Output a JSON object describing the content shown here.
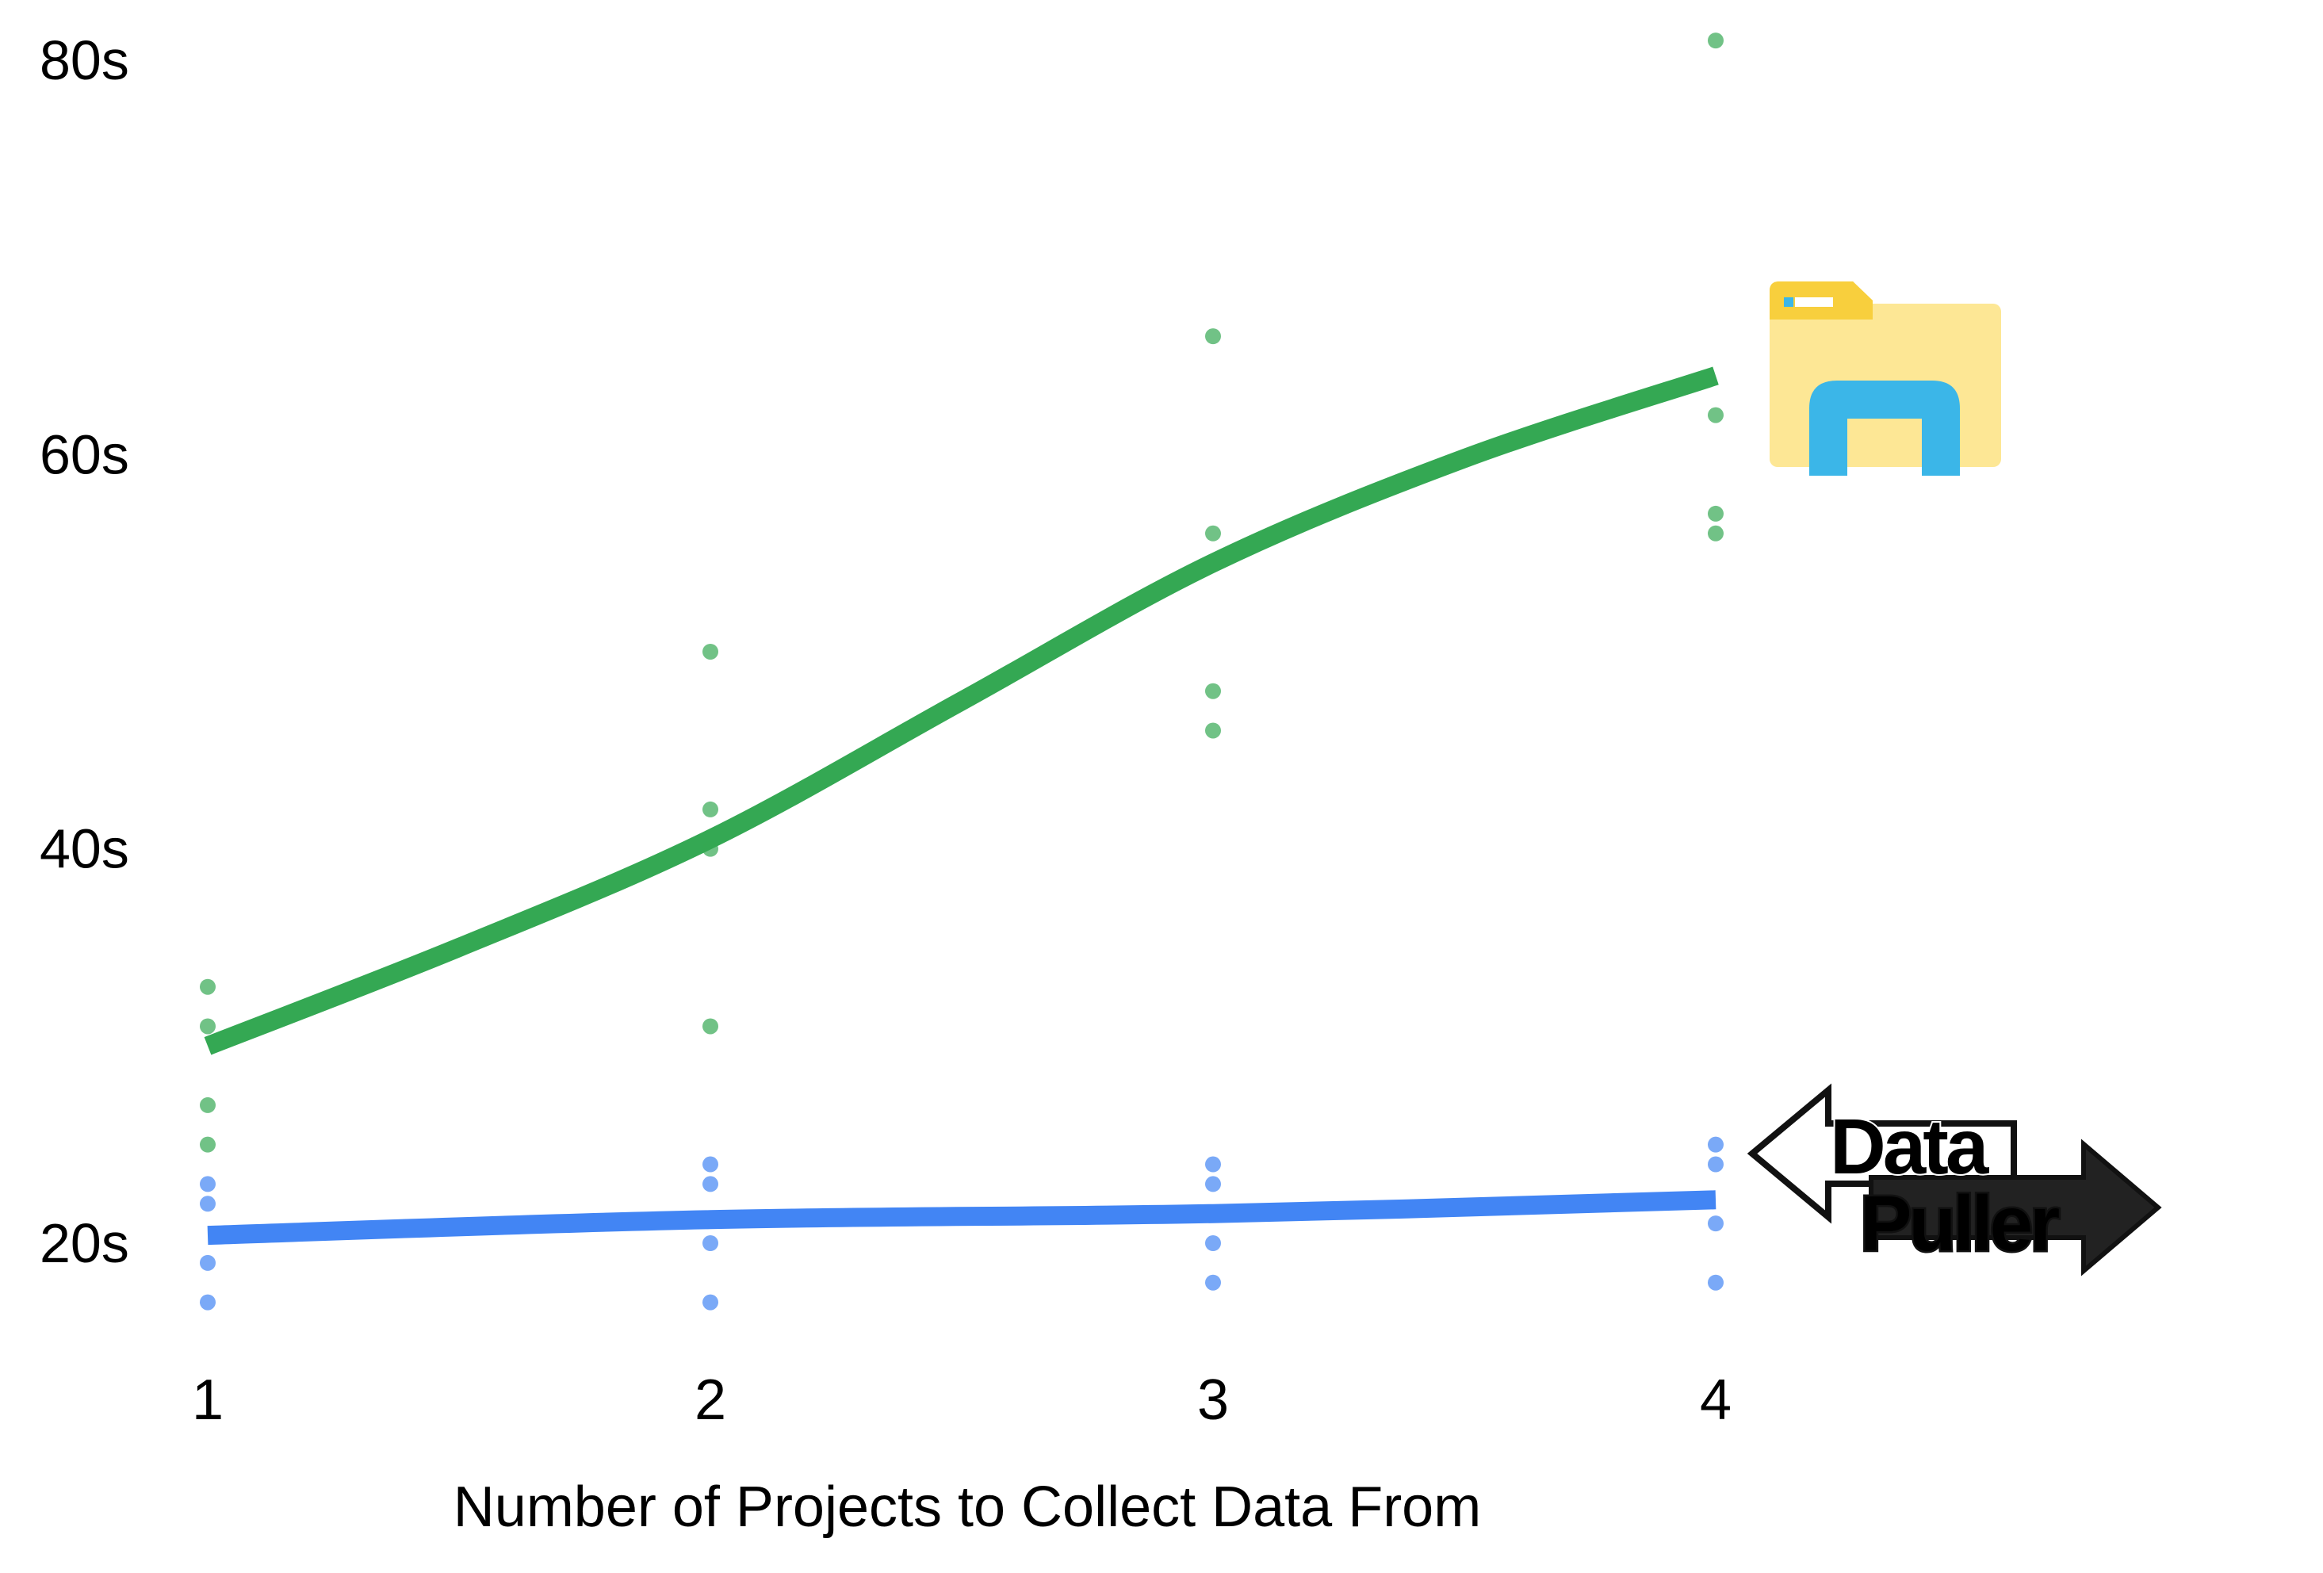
{
  "chart_data": {
    "type": "scatter",
    "title": "",
    "xlabel": "Number of Projects to Collect Data From",
    "ylabel": "",
    "x_ticks": [
      "1",
      "2",
      "3",
      "4"
    ],
    "y_ticks": [
      "20s",
      "40s",
      "60s",
      "80s"
    ],
    "xlim": [
      1,
      4
    ],
    "ylim": [
      20,
      80
    ],
    "grid": false,
    "legend": "none",
    "series": [
      {
        "icon": "file-explorer-folder-icon",
        "color": "#34A853",
        "points": [
          [
            1,
            33
          ],
          [
            1,
            31
          ],
          [
            1,
            27
          ],
          [
            1,
            25
          ],
          [
            2,
            50
          ],
          [
            2,
            42
          ],
          [
            2,
            40
          ],
          [
            2,
            31
          ],
          [
            3,
            66
          ],
          [
            3,
            56
          ],
          [
            3,
            48
          ],
          [
            3,
            46
          ],
          [
            4,
            81
          ],
          [
            4,
            62
          ],
          [
            4,
            57
          ],
          [
            4,
            56
          ]
        ],
        "trend": [
          [
            1,
            30
          ],
          [
            1.5,
            35
          ],
          [
            2,
            40.5
          ],
          [
            2.5,
            47.5
          ],
          [
            3,
            54.5
          ],
          [
            3.5,
            59.8
          ],
          [
            4,
            64
          ]
        ]
      },
      {
        "icon": "data-puller-logo",
        "color": "#4285F4",
        "points": [
          [
            1,
            23
          ],
          [
            1,
            22
          ],
          [
            1,
            19
          ],
          [
            1,
            17
          ],
          [
            2,
            24
          ],
          [
            2,
            23
          ],
          [
            2,
            20
          ],
          [
            2,
            17
          ],
          [
            3,
            24
          ],
          [
            3,
            23
          ],
          [
            3,
            20
          ],
          [
            3,
            18
          ],
          [
            4,
            25
          ],
          [
            4,
            24
          ],
          [
            4,
            21
          ],
          [
            4,
            18
          ]
        ],
        "trend": [
          [
            1,
            20.4
          ],
          [
            2,
            21.2
          ],
          [
            3,
            21.5
          ],
          [
            4,
            22.2
          ]
        ]
      }
    ]
  },
  "logos": {
    "data_puller": {
      "line1": "Data",
      "line2": "Puller"
    }
  }
}
